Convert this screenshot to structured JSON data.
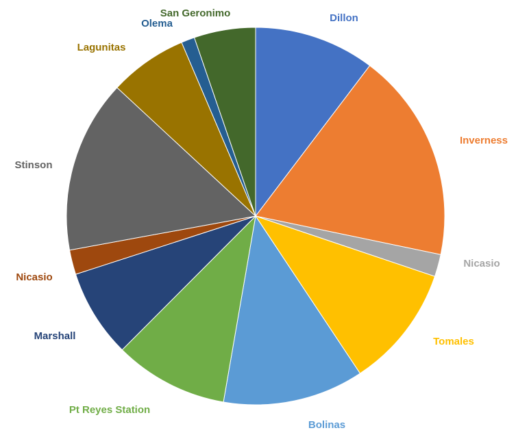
{
  "chart_data": {
    "type": "pie",
    "title": "",
    "slices": [
      {
        "label": "Dillon",
        "value": 10.8,
        "color": "#4472C4"
      },
      {
        "label": "Inverness",
        "value": 18.8,
        "color": "#ED7D31"
      },
      {
        "label": "Nicasio",
        "value": 2.0,
        "color": "#A5A5A5"
      },
      {
        "label": "Tomales",
        "value": 11.0,
        "color": "#FFC000"
      },
      {
        "label": "Bolinas",
        "value": 12.6,
        "color": "#5B9BD5"
      },
      {
        "label": "Pt Reyes Station",
        "value": 10.2,
        "color": "#70AD47"
      },
      {
        "label": "Marshall",
        "value": 7.9,
        "color": "#264478"
      },
      {
        "label": "Nicasio",
        "value": 2.2,
        "color": "#9E480E"
      },
      {
        "label": "Stinson",
        "value": 15.5,
        "color": "#636363"
      },
      {
        "label": "Lagunitas",
        "value": 7.0,
        "color": "#997300"
      },
      {
        "label": "Olema",
        "value": 1.2,
        "color": "#255E91"
      },
      {
        "label": "San Geronimo",
        "value": 5.5,
        "color": "#43682B"
      }
    ],
    "legend": "none",
    "labels": "outside"
  }
}
